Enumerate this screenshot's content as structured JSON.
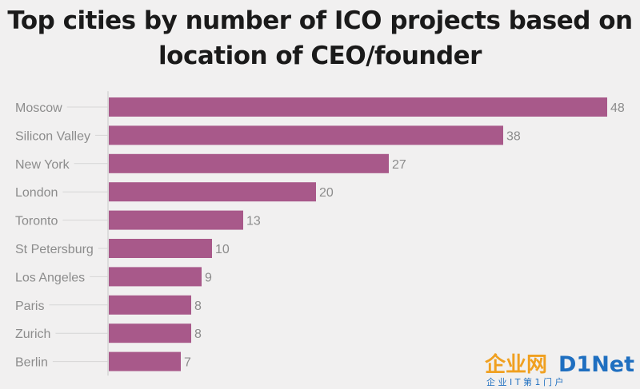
{
  "title": "Top cities by number of ICO projects based on location of CEO/founder",
  "chart_data": {
    "type": "bar",
    "orientation": "horizontal",
    "title": "Top cities by number of ICO projects based on location of CEO/founder",
    "categories": [
      "Moscow",
      "Silicon Valley",
      "New York",
      "London",
      "Toronto",
      "St Petersburg",
      "Los Angeles",
      "Paris",
      "Zurich",
      "Berlin"
    ],
    "values": [
      48,
      38,
      27,
      20,
      13,
      10,
      9,
      8,
      8,
      7
    ],
    "xlim": [
      0,
      48
    ],
    "grid": false,
    "legend": "none",
    "bar_color": "#a8598a"
  },
  "watermark": {
    "brand_cn": "企业网",
    "brand_en": "D1Net",
    "tagline": "企 业 I T 第 1 门 户"
  }
}
